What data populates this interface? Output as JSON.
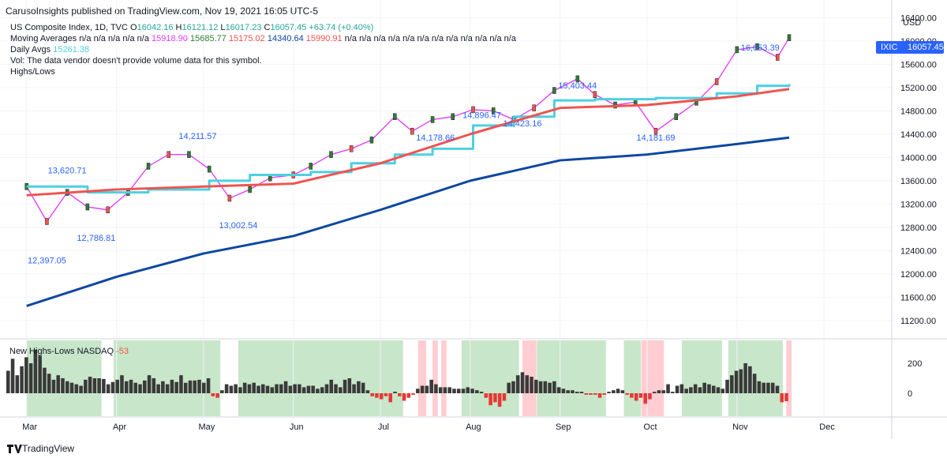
{
  "header": {
    "published": "CarusoInsights published on TradingView.com, Nov 19, 2021 16:05 UTC-5",
    "currency": "USD"
  },
  "legend": {
    "symbol_line": "US Composite Index, 1D, TVC",
    "ohlc": [
      {
        "label": "O",
        "value": "16042.16"
      },
      {
        "label": "H",
        "value": "16121.12"
      },
      {
        "label": "L",
        "value": "16017.23"
      },
      {
        "label": "C",
        "value": "16057.45"
      }
    ],
    "change": "+63.74 (+0.40%)",
    "ma_label": "Moving Averages",
    "ma_values": [
      "n/a",
      "n/a",
      "n/a",
      "n/a",
      "n/a",
      "15918.90",
      "15685.77",
      "15175.02",
      "14340.64",
      "15990.91",
      "n/a",
      "n/a",
      "n/a",
      "n/a",
      "n/a",
      "n/a",
      "n/a",
      "n/a",
      "n/a",
      "n/a",
      "n/a",
      "n/a"
    ],
    "daily_avgs_label": "Daily Avgs",
    "daily_avgs_value": "15261.38",
    "vol_text": "Vol: The data vendor doesn't provide volume data for this symbol.",
    "highs_lows_label": "Highs/Lows",
    "last_price_symbol": "IXIC",
    "last_price": "16057.45"
  },
  "colors": {
    "up": "#26a69a",
    "candle_up": "#ffffff",
    "candle_down": "#ef5350",
    "ma1": "#e040fb",
    "ma2": "#2e7d32",
    "ma3": "#ef5350",
    "ma4": "#0d47a1",
    "daily_avgs": "#4dd0e1",
    "annotation": "#2962ff",
    "band_green": "#c8e6c9",
    "band_red": "#ffcdd2",
    "hist_pos": "#3a3a3a",
    "hist_neg": "#e53935"
  },
  "chart_data": [
    {
      "type": "line",
      "title": "US Composite Index, 1D, TVC",
      "y_ticks": [
        "16400.00",
        "16000.00",
        "15600.00",
        "15200.00",
        "14800.00",
        "14400.00",
        "14000.00",
        "13600.00",
        "13200.00",
        "12800.00",
        "12400.00",
        "12000.00",
        "11600.00",
        "11200.00"
      ],
      "ylim": [
        10900,
        16500
      ],
      "x_ticks": [
        "Mar",
        "Apr",
        "May",
        "Jun",
        "Jul",
        "Aug",
        "Sep",
        "Oct",
        "Nov",
        "Dec"
      ],
      "annotations": [
        {
          "text": "12,397.05",
          "x": "Mar 8",
          "y": 12397.05
        },
        {
          "text": "13,620.71",
          "x": "Mar 15",
          "y": 13620.71
        },
        {
          "text": "12,786.81",
          "x": "Mar 25",
          "y": 12786.81
        },
        {
          "text": "14,211.57",
          "x": "Apr 29",
          "y": 14211.57
        },
        {
          "text": "13,002.54",
          "x": "May 13",
          "y": 13002.54
        },
        {
          "text": "14,178.66",
          "x": "Jul 20",
          "y": 14178.66
        },
        {
          "text": "14,896.47",
          "x": "Aug 5",
          "y": 14896.47
        },
        {
          "text": "14,423.16",
          "x": "Aug 19",
          "y": 14423.16
        },
        {
          "text": "15,403.44",
          "x": "Sep 7",
          "y": 15403.44
        },
        {
          "text": "14,181.69",
          "x": "Oct 4",
          "y": 14181.69
        },
        {
          "text": "16,053.39",
          "x": "Nov 9",
          "y": 16053.39
        }
      ],
      "series": [
        {
          "name": "US Composite Index",
          "kind": "close",
          "x": [
            "Mar 1",
            "Mar 8",
            "Mar 15",
            "Mar 22",
            "Mar 29",
            "Apr 5",
            "Apr 12",
            "Apr 19",
            "Apr 26",
            "May 3",
            "May 10",
            "May 17",
            "May 24",
            "Jun 1",
            "Jun 7",
            "Jun 14",
            "Jun 21",
            "Jun 28",
            "Jul 6",
            "Jul 12",
            "Jul 19",
            "Jul 26",
            "Aug 2",
            "Aug 9",
            "Aug 16",
            "Aug 23",
            "Aug 30",
            "Sep 7",
            "Sep 13",
            "Sep 20",
            "Sep 27",
            "Oct 4",
            "Oct 11",
            "Oct 18",
            "Oct 25",
            "Nov 1",
            "Nov 8",
            "Nov 15",
            "Nov 19"
          ],
          "values": [
            13500,
            12900,
            13400,
            13150,
            13100,
            13400,
            13850,
            14050,
            14050,
            13800,
            13300,
            13450,
            13650,
            13700,
            13850,
            14050,
            14150,
            14300,
            14700,
            14450,
            14650,
            14700,
            14820,
            14800,
            14650,
            14850,
            15150,
            15350,
            15080,
            14900,
            14950,
            14450,
            14700,
            14950,
            15300,
            15850,
            15900,
            15720,
            16057
          ]
        },
        {
          "name": "Daily Avgs",
          "kind": "stepped",
          "x": [
            "Mar 1",
            "Mar 22",
            "Apr 12",
            "May 3",
            "May 17",
            "Jun 7",
            "Jun 21",
            "Jul 6",
            "Jul 19",
            "Aug 2",
            "Aug 16",
            "Aug 30",
            "Sep 13",
            "Oct 4",
            "Oct 25",
            "Nov 8",
            "Nov 19"
          ],
          "values": [
            13500,
            13400,
            13450,
            13600,
            13700,
            13750,
            13900,
            14050,
            14150,
            14550,
            14700,
            14980,
            15000,
            15020,
            15100,
            15230,
            15261
          ]
        },
        {
          "name": "MA 15175.02",
          "x": [
            "Mar 1",
            "Apr 1",
            "May 1",
            "Jun 1",
            "Jul 1",
            "Aug 1",
            "Sep 1",
            "Oct 1",
            "Nov 1",
            "Nov 19"
          ],
          "values": [
            13350,
            13450,
            13500,
            13550,
            13900,
            14400,
            14850,
            14900,
            15050,
            15175
          ]
        },
        {
          "name": "MA 14340.64",
          "x": [
            "Mar 1",
            "Apr 1",
            "May 1",
            "Jun 1",
            "Jul 1",
            "Aug 1",
            "Sep 1",
            "Oct 1",
            "Nov 1",
            "Nov 19"
          ],
          "values": [
            11450,
            11950,
            12350,
            12650,
            13100,
            13600,
            13950,
            14050,
            14230,
            14341
          ]
        }
      ]
    },
    {
      "type": "bar",
      "title": "New Highs-Lows NASDAQ",
      "last_value": "-53",
      "y_ticks": [
        "200",
        "0"
      ],
      "bands": [
        {
          "from": "Mar 1",
          "to": "Mar 26",
          "color": "green"
        },
        {
          "from": "Mar 31",
          "to": "May 6",
          "color": "green"
        },
        {
          "from": "May 13",
          "to": "Jul 8",
          "color": "green"
        },
        {
          "from": "Jul 14",
          "to": "Jul 16",
          "color": "red"
        },
        {
          "from": "Jul 19",
          "to": "Jul 20",
          "color": "red"
        },
        {
          "from": "Jul 22",
          "to": "Jul 23",
          "color": "red"
        },
        {
          "from": "Jul 29",
          "to": "Aug 17",
          "color": "green"
        },
        {
          "from": "Aug 19",
          "to": "Aug 23",
          "color": "red"
        },
        {
          "from": "Aug 24",
          "to": "Sep 16",
          "color": "green"
        },
        {
          "from": "Sep 23",
          "to": "Sep 28",
          "color": "green"
        },
        {
          "from": "Sep 29",
          "to": "Oct 6",
          "color": "red"
        },
        {
          "from": "Oct 13",
          "to": "Oct 26",
          "color": "green"
        },
        {
          "from": "Oct 29",
          "to": "Nov 16",
          "color": "green"
        },
        {
          "from": "Nov 18",
          "to": "Nov 19",
          "color": "red"
        }
      ],
      "values": [
        150,
        230,
        120,
        180,
        240,
        200,
        290,
        250,
        170,
        130,
        90,
        120,
        100,
        80,
        70,
        60,
        50,
        90,
        110,
        100,
        100,
        95,
        60,
        75,
        90,
        120,
        80,
        90,
        70,
        60,
        85,
        120,
        100,
        60,
        80,
        60,
        90,
        75,
        120,
        70,
        85,
        85,
        90,
        70,
        100,
        -20,
        -30,
        20,
        60,
        50,
        60,
        40,
        70,
        60,
        70,
        50,
        60,
        50,
        40,
        60,
        60,
        80,
        50,
        60,
        60,
        40,
        50,
        50,
        30,
        40,
        60,
        90,
        60,
        40,
        90,
        100,
        60,
        80,
        70,
        20,
        -20,
        -30,
        -40,
        -20,
        -60,
        10,
        -20,
        -50,
        -30,
        -10,
        30,
        50,
        50,
        90,
        60,
        40,
        40,
        40,
        30,
        30,
        30,
        40,
        30,
        20,
        10,
        -30,
        -80,
        -60,
        -90,
        -50,
        70,
        80,
        120,
        140,
        120,
        110,
        90,
        80,
        80,
        70,
        80,
        40,
        30,
        20,
        20,
        10,
        10,
        -10,
        -10,
        -10,
        -30,
        -10,
        10,
        20,
        30,
        20,
        -10,
        -30,
        -50,
        -30,
        -70,
        -40,
        10,
        20,
        20,
        60,
        10,
        50,
        60,
        30,
        40,
        60,
        40,
        70,
        60,
        50,
        40,
        30,
        90,
        120,
        150,
        160,
        200,
        180,
        130,
        80,
        70,
        70,
        70,
        50,
        -60,
        -53
      ]
    }
  ]
}
